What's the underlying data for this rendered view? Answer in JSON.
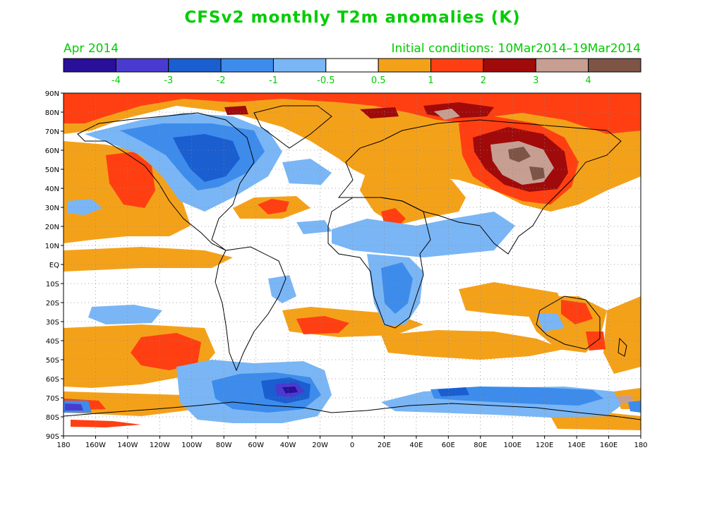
{
  "header": {
    "title": "CFSv2 monthly T2m anomalies (K)",
    "valid_month": "Apr 2014",
    "initial_conditions": "Initial conditions: 10Mar2014–19Mar2014"
  },
  "colorbar": {
    "colors": [
      "#2a0f9a",
      "#4a3bd0",
      "#1a5ed0",
      "#3d8cec",
      "#7ab6f5",
      "#ffffff",
      "#f4a11a",
      "#ff3f12",
      "#a00a0a",
      "#c79e92",
      "#7d5446"
    ],
    "labels": [
      "-4",
      "-3",
      "-2",
      "-1",
      "-0.5",
      "0.5",
      "1",
      "2",
      "3",
      "4"
    ]
  },
  "map": {
    "lat_ticks": [
      "90N",
      "80N",
      "70N",
      "60N",
      "50N",
      "40N",
      "30N",
      "20N",
      "10N",
      "EQ",
      "10S",
      "20S",
      "30S",
      "40S",
      "50S",
      "60S",
      "70S",
      "80S",
      "90S"
    ],
    "lon_ticks": [
      "180",
      "160W",
      "140W",
      "120W",
      "100W",
      "80W",
      "60W",
      "40W",
      "20W",
      "0",
      "20E",
      "40E",
      "60E",
      "80E",
      "100E",
      "120E",
      "140E",
      "160E",
      "180"
    ],
    "anomaly_regions": [
      {
        "name": "arctic-warm",
        "level": "warm"
      },
      {
        "name": "north-pacific-warm",
        "level": "warm"
      },
      {
        "name": "north-america-cold",
        "level": "cold"
      },
      {
        "name": "central-asia-warm",
        "level": "very-warm"
      },
      {
        "name": "south-pacific-warm",
        "level": "warm"
      },
      {
        "name": "antarctic-cold",
        "level": "cold"
      },
      {
        "name": "africa-cold",
        "level": "cool"
      },
      {
        "name": "australia-warm",
        "level": "warm"
      }
    ]
  }
}
